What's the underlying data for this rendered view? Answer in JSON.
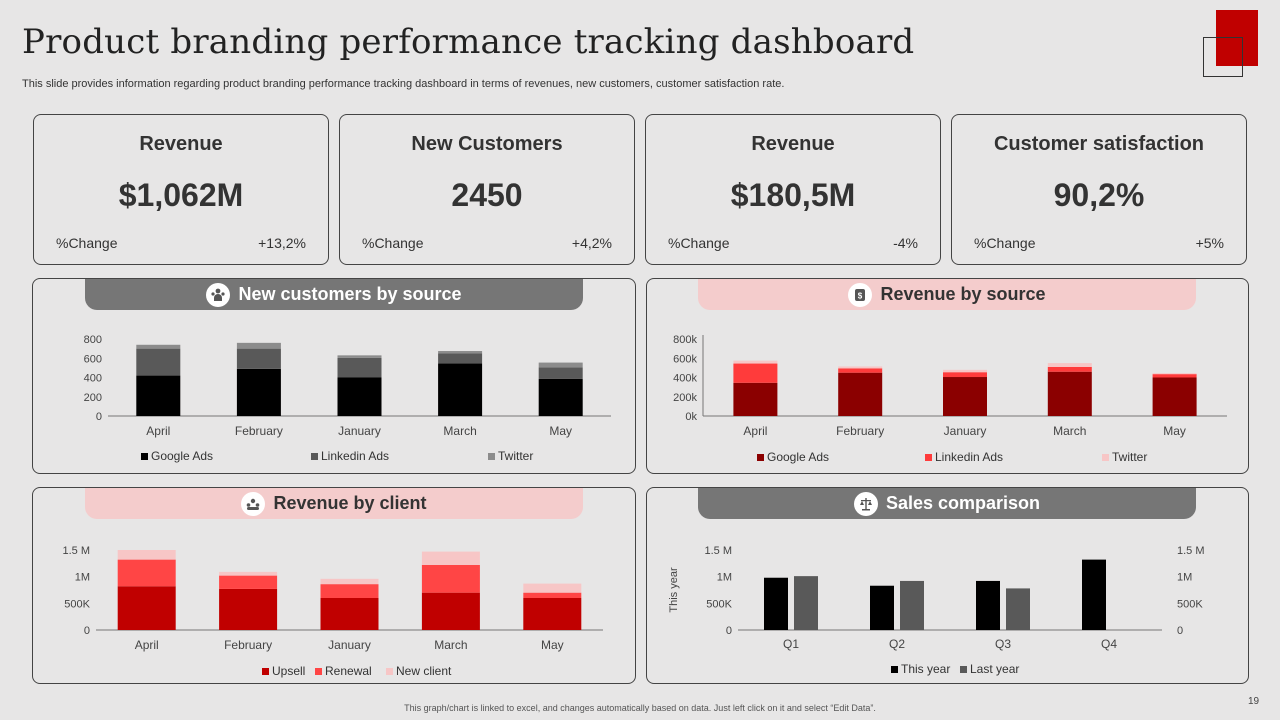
{
  "header": {
    "title": "Product branding performance tracking dashboard",
    "subtitle": "This slide provides information regarding product branding performance tracking dashboard in terms of revenues, new customers, customer satisfaction rate."
  },
  "kpis": [
    {
      "title": "Revenue",
      "value": "$1,062M",
      "change_label": "%Change",
      "change": "+13,2%"
    },
    {
      "title": "New Customers",
      "value": "2450",
      "change_label": "%Change",
      "change": "+4,2%"
    },
    {
      "title": "Revenue",
      "value": "$180,5M",
      "change_label": "%Change",
      "change": "-4%"
    },
    {
      "title": "Customer satisfaction",
      "value": "90,2%",
      "change_label": "%Change",
      "change": "+5%"
    }
  ],
  "chart_data": [
    {
      "type": "bar",
      "stacked": true,
      "title": "New customers by source",
      "icon": "people-icon",
      "categories": [
        "April",
        "February",
        "January",
        "March",
        "May"
      ],
      "series": [
        {
          "name": "Google Ads",
          "color": "#000000",
          "values": [
            420,
            490,
            400,
            545,
            385
          ]
        },
        {
          "name": "Linkedin Ads",
          "color": "#595959",
          "values": [
            280,
            210,
            205,
            105,
            120
          ]
        },
        {
          "name": "Twitter",
          "color": "#8c8c8c",
          "values": [
            40,
            60,
            25,
            25,
            50
          ]
        }
      ],
      "yticks": [
        "0",
        "200",
        "400",
        "600",
        "800"
      ],
      "ylim": [
        0,
        800
      ],
      "legend": "bottom"
    },
    {
      "type": "bar",
      "stacked": true,
      "title": "Revenue by source",
      "icon": "money-bag-icon",
      "categories": [
        "April",
        "February",
        "January",
        "March",
        "May"
      ],
      "series": [
        {
          "name": "Google Ads",
          "color": "#8b0000",
          "values": [
            345000,
            450000,
            405000,
            460000,
            400000
          ]
        },
        {
          "name": "Linkedin Ads",
          "color": "#ff3b3b",
          "values": [
            200000,
            45000,
            50000,
            50000,
            35000
          ]
        },
        {
          "name": "Twitter",
          "color": "#f7c6c6",
          "values": [
            30000,
            20000,
            25000,
            40000,
            10000
          ]
        }
      ],
      "yticks": [
        "0k",
        "200k",
        "400k",
        "600k",
        "800k"
      ],
      "ylim": [
        0,
        800000
      ],
      "legend": "bottom"
    },
    {
      "type": "bar",
      "stacked": true,
      "title": "Revenue by client",
      "icon": "client-group-icon",
      "categories": [
        "April",
        "February",
        "January",
        "March",
        "May"
      ],
      "series": [
        {
          "name": "Upsell",
          "color": "#c00000",
          "values": [
            820000,
            770000,
            600000,
            700000,
            600000
          ]
        },
        {
          "name": "Renewal",
          "color": "#ff4545",
          "values": [
            500000,
            250000,
            260000,
            520000,
            100000
          ]
        },
        {
          "name": "New client",
          "color": "#f7c6c6",
          "values": [
            180000,
            70000,
            100000,
            250000,
            170000
          ]
        }
      ],
      "yticks": [
        "0",
        "500K",
        "1M",
        "1.5 M"
      ],
      "ylim": [
        0,
        1500000
      ],
      "legend": "bottom"
    },
    {
      "type": "bar",
      "stacked": false,
      "title": "Sales comparison",
      "icon": "scale-icon",
      "ylabel": "This year",
      "categories": [
        "Q1",
        "Q2",
        "Q3",
        "Q4"
      ],
      "series": [
        {
          "name": "This year",
          "color": "#000000",
          "values": [
            980000,
            830000,
            920000,
            1320000
          ]
        },
        {
          "name": "Last year",
          "color": "#595959",
          "values": [
            1010000,
            920000,
            780000,
            null
          ]
        }
      ],
      "yticks": [
        "0",
        "500K",
        "1M",
        "1.5 M"
      ],
      "yticks_right": [
        "0",
        "500K",
        "1M",
        "1.5 M"
      ],
      "ylim": [
        0,
        1500000
      ],
      "legend": "bottom"
    }
  ],
  "footer": {
    "note": "This graph/chart is linked to excel, and changes automatically based on data. Just left click on it and select “Edit Data”.",
    "page": "19"
  }
}
